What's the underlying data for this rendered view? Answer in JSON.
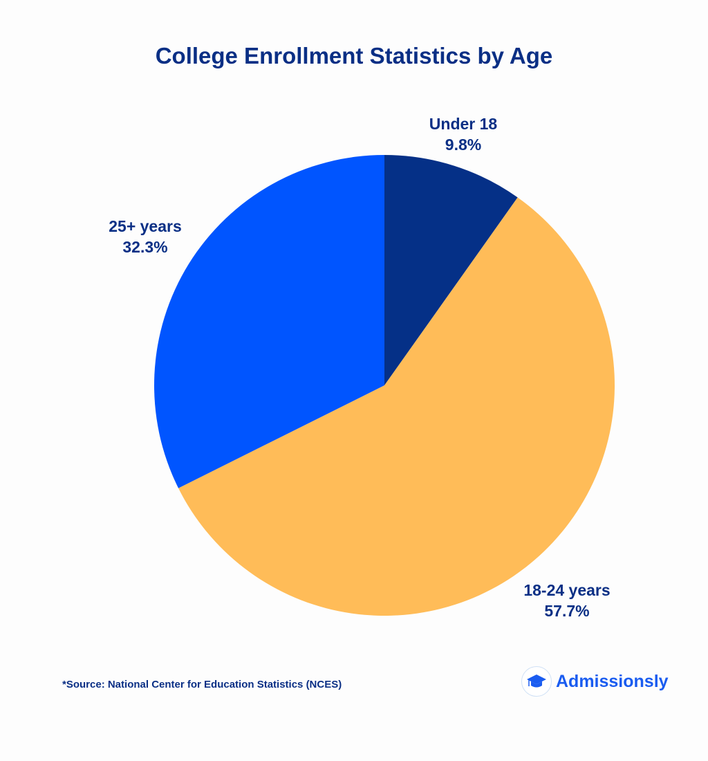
{
  "chart_data": {
    "type": "pie",
    "title": "College Enrollment Statistics by Age",
    "slices": [
      {
        "label": "Under 18",
        "value": 9.8,
        "display": "9.8%",
        "color": "#053087"
      },
      {
        "label": "18-24 years",
        "value": 57.7,
        "display": "57.7%",
        "color": "#FFBC58"
      },
      {
        "label": "25+ years",
        "value": 32.3,
        "display": "32.3%",
        "color": "#0055FF"
      }
    ],
    "start": "top",
    "direction": "clockwise"
  },
  "footer": {
    "source": "*Source: National Center for Education Statistics (NCES)",
    "logo_text": "Admissionsly",
    "logo_icon": "graduation-cap-icon"
  }
}
